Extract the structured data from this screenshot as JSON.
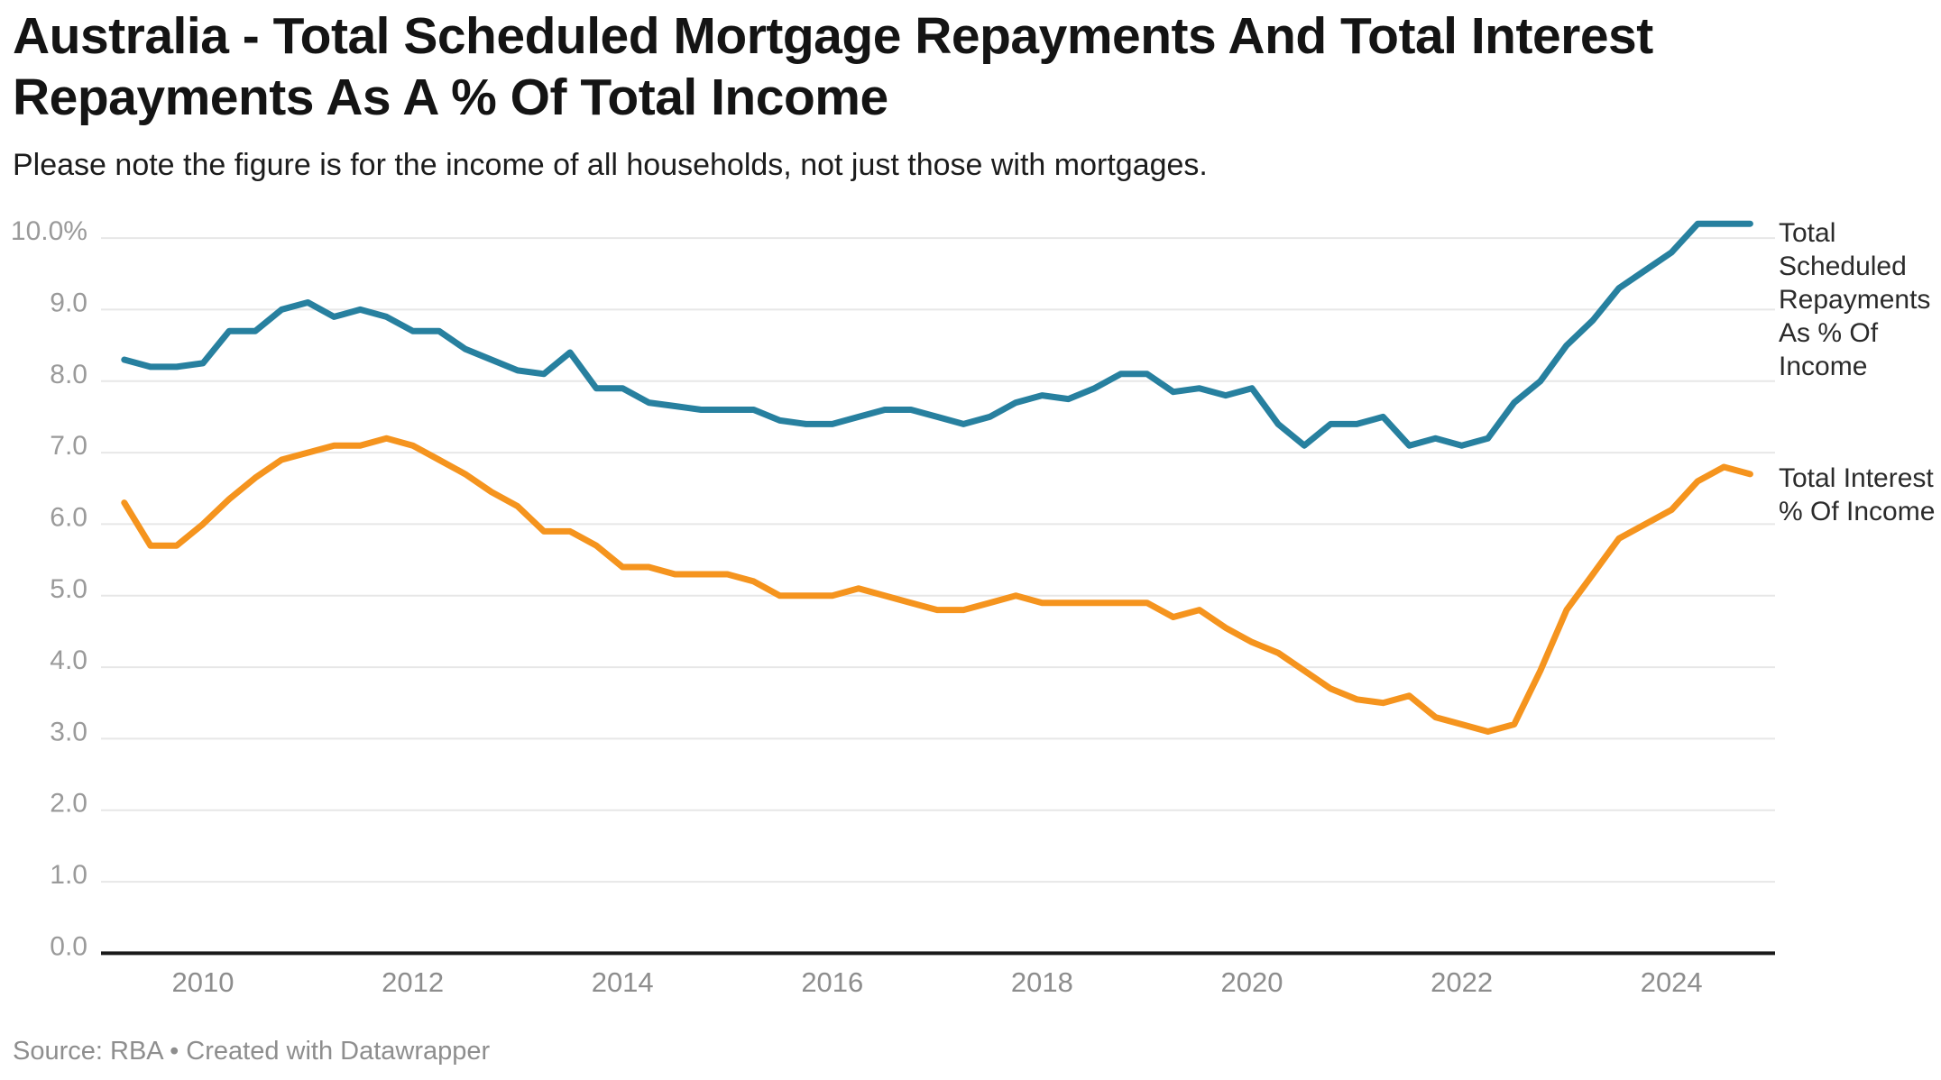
{
  "title": {
    "line1": "Australia - Total Scheduled Mortgage Repayments And Total Interest",
    "line2": "Repayments As A % Of Total Income"
  },
  "subtitle": "Please note the figure is for the income of all households, not just those with mortgages.",
  "source_note": "Source: RBA • Created with Datawrapper",
  "colors": {
    "scheduled_line": "#27809f",
    "interest_line": "#f5941e",
    "gridline": "#e7e7e7",
    "axis_baseline": "#1a1a1a",
    "y_tick_label": "#9a9a9a",
    "x_tick_label": "#8d8d8d",
    "title_text": "#141414",
    "source_text": "#8e8e8e",
    "legend_text": "#2b2b2b"
  },
  "chart_data": {
    "type": "line",
    "unit": "%",
    "grid": "horizontal",
    "legend_position": "right of line ends",
    "xlim": [
      2009.0,
      2025.0
    ],
    "ylim": [
      0,
      10.45
    ],
    "x_start": 2009.25,
    "x_step": 0.25,
    "x_tick_labels": [
      "2010",
      "2012",
      "2014",
      "2016",
      "2018",
      "2020",
      "2022",
      "2024"
    ],
    "x_tick_years": [
      2010,
      2012,
      2014,
      2016,
      2018,
      2020,
      2022,
      2024
    ],
    "y_ticks": [
      {
        "value": 10,
        "label": "10.0%"
      },
      {
        "value": 9,
        "label": "9.0"
      },
      {
        "value": 8,
        "label": "8.0"
      },
      {
        "value": 7,
        "label": "7.0"
      },
      {
        "value": 6,
        "label": "6.0"
      },
      {
        "value": 5,
        "label": "5.0"
      },
      {
        "value": 4,
        "label": "4.0"
      },
      {
        "value": 3,
        "label": "3.0"
      },
      {
        "value": 2,
        "label": "2.0"
      },
      {
        "value": 1,
        "label": "1.0"
      },
      {
        "value": 0,
        "label": "0.0"
      }
    ],
    "series": [
      {
        "name": "Total Scheduled Repayments As % Of Income",
        "color": "#27809f",
        "values": [
          8.3,
          8.2,
          8.2,
          8.25,
          8.7,
          8.7,
          9.0,
          9.1,
          8.9,
          9.0,
          8.9,
          8.7,
          8.7,
          8.45,
          8.3,
          8.15,
          8.1,
          8.4,
          7.9,
          7.9,
          7.7,
          7.65,
          7.6,
          7.6,
          7.6,
          7.45,
          7.4,
          7.4,
          7.5,
          7.6,
          7.6,
          7.5,
          7.4,
          7.5,
          7.7,
          7.8,
          7.75,
          7.9,
          8.1,
          8.1,
          7.85,
          7.9,
          7.8,
          7.9,
          7.4,
          7.1,
          7.4,
          7.4,
          7.5,
          7.1,
          7.2,
          7.1,
          7.2,
          7.7,
          8.0,
          8.5,
          8.85,
          9.3,
          9.55,
          9.8,
          10.2,
          10.2,
          10.2
        ]
      },
      {
        "name": "Total Interest % Of Income",
        "color": "#f5941e",
        "values": [
          6.3,
          5.7,
          5.7,
          6.0,
          6.35,
          6.65,
          6.9,
          7.0,
          7.1,
          7.1,
          7.2,
          7.1,
          6.9,
          6.7,
          6.45,
          6.25,
          5.9,
          5.9,
          5.7,
          5.4,
          5.4,
          5.3,
          5.3,
          5.3,
          5.2,
          5.0,
          5.0,
          5.0,
          5.1,
          5.0,
          4.9,
          4.8,
          4.8,
          4.9,
          5.0,
          4.9,
          4.9,
          4.9,
          4.9,
          4.9,
          4.7,
          4.8,
          4.55,
          4.35,
          4.2,
          3.95,
          3.7,
          3.55,
          3.5,
          3.6,
          3.3,
          3.2,
          3.1,
          3.2,
          3.95,
          4.8,
          5.3,
          5.8,
          6.0,
          6.2,
          6.6,
          6.8,
          6.7
        ]
      }
    ]
  }
}
